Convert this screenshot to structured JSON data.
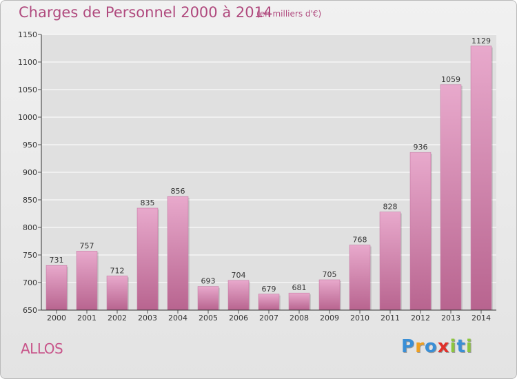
{
  "header": {
    "title": "Charges de Personnel 2000 à 2014",
    "subtitle": "(en milliers d'€)"
  },
  "footer": {
    "commune": "ALLOS",
    "logo_text": "Proxiti",
    "logo_letters": [
      {
        "ch": "P",
        "color": "#3a8fd6"
      },
      {
        "ch": "r",
        "color": "#f0a020"
      },
      {
        "ch": "o",
        "color": "#3a8fd6"
      },
      {
        "ch": "x",
        "color": "#e0302a"
      },
      {
        "ch": "i",
        "color": "#8cc63e"
      },
      {
        "ch": "t",
        "color": "#3a8fd6"
      },
      {
        "ch": "i",
        "color": "#8cc63e"
      }
    ]
  },
  "chart_data": {
    "type": "bar",
    "title": "Charges de Personnel 2000 à 2014",
    "subtitle": "(en milliers d'€)",
    "categories": [
      "2000",
      "2001",
      "2002",
      "2003",
      "2004",
      "2005",
      "2006",
      "2007",
      "2008",
      "2009",
      "2010",
      "2011",
      "2012",
      "2013",
      "2014"
    ],
    "values": [
      731,
      757,
      712,
      835,
      856,
      693,
      704,
      679,
      681,
      705,
      768,
      828,
      936,
      1059,
      1129
    ],
    "ylim": [
      650,
      1150
    ],
    "yticks": [
      650,
      700,
      750,
      800,
      850,
      900,
      950,
      1000,
      1050,
      1100,
      1150
    ],
    "grid": true,
    "bar_color": "#d67fb0",
    "bar_color_light": "#e8a9cc",
    "bar_color_dark": "#b8648f",
    "grid_color": "#ffffff",
    "plot_background": "#e0e0e0"
  }
}
